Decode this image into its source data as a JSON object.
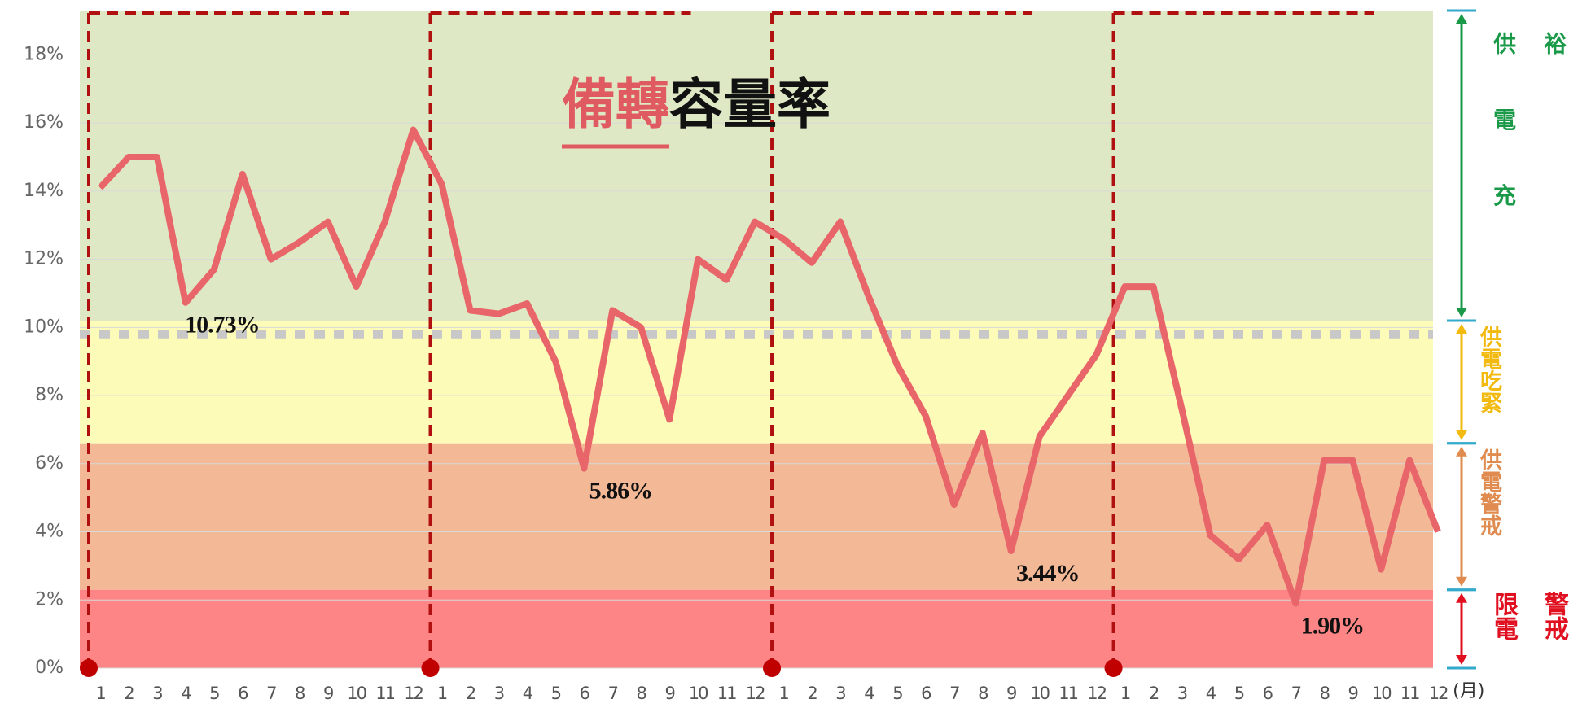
{
  "chart_data": {
    "type": "line",
    "title_highlight": "備轉",
    "title_rest": "容量率",
    "x_unit": "(月)",
    "categories": [
      "1",
      "2",
      "3",
      "4",
      "5",
      "6",
      "7",
      "8",
      "9",
      "10",
      "11",
      "12",
      "1",
      "2",
      "3",
      "4",
      "5",
      "6",
      "7",
      "8",
      "9",
      "10",
      "11",
      "12",
      "1",
      "2",
      "3",
      "4",
      "5",
      "6",
      "7",
      "8",
      "9",
      "10",
      "11",
      "12",
      "1",
      "2",
      "3",
      "4",
      "5",
      "6",
      "7",
      "8",
      "9",
      "10",
      "11",
      "12"
    ],
    "series": [
      {
        "color": "#e8656a",
        "values": [
          14.1,
          15.0,
          15.0,
          10.73,
          11.7,
          14.5,
          12.0,
          12.5,
          13.1,
          11.2,
          13.1,
          15.8,
          14.2,
          10.5,
          10.4,
          10.7,
          9.0,
          5.86,
          10.5,
          10.0,
          7.3,
          12.0,
          11.4,
          13.1,
          12.6,
          11.9,
          13.1,
          10.9,
          8.9,
          7.4,
          4.8,
          6.9,
          3.44,
          6.8,
          8.0,
          9.2,
          11.2,
          11.2,
          7.6,
          3.9,
          3.2,
          4.2,
          1.9,
          6.1,
          6.1,
          2.9,
          6.1,
          4.0
        ],
        "value_labels": [
          null,
          null,
          null,
          "10.73%",
          null,
          null,
          null,
          null,
          null,
          null,
          null,
          null,
          null,
          null,
          null,
          null,
          null,
          "5.86%",
          null,
          null,
          null,
          null,
          null,
          null,
          null,
          null,
          null,
          null,
          null,
          null,
          null,
          null,
          "3.44%",
          null,
          null,
          null,
          null,
          null,
          null,
          null,
          null,
          null,
          "1.90%",
          null,
          null,
          null,
          null,
          null
        ]
      }
    ],
    "ylim": [
      0,
      19.3
    ],
    "yticks": [
      {
        "value": 0,
        "label": "0%"
      },
      {
        "value": 2,
        "label": "2%"
      },
      {
        "value": 4,
        "label": "4%"
      },
      {
        "value": 6,
        "label": "6%"
      },
      {
        "value": 8,
        "label": "8%"
      },
      {
        "value": 10,
        "label": "10%"
      },
      {
        "value": 12,
        "label": "12%"
      },
      {
        "value": 14,
        "label": "14%"
      },
      {
        "value": 16,
        "label": "16%"
      },
      {
        "value": 18,
        "label": "18%"
      }
    ],
    "grid": true,
    "threshold": 9.8,
    "zones": [
      {
        "label": "供電充裕",
        "color": "#dfe8c4",
        "text_color": "#1a9a48",
        "lo": 10.2,
        "hi": 19.3
      },
      {
        "label": "供電吃緊",
        "color": "#fdfbb8",
        "text_color": "#f2b90f",
        "lo": 6.6,
        "hi": 10.2
      },
      {
        "label": "供電警戒",
        "color": "#f3b896",
        "text_color": "#e08c50",
        "lo": 2.3,
        "hi": 6.6
      },
      {
        "label": "限電警戒",
        "color": "#fd8585",
        "text_color": "#e01020",
        "lo": 0,
        "hi": 2.3
      }
    ]
  }
}
